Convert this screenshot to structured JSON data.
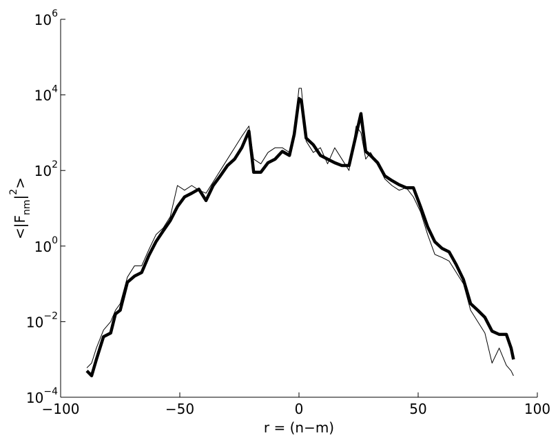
{
  "chart_data": {
    "type": "line",
    "xlabel": "r = (n−m)",
    "ylabel_parts": [
      "<|F",
      "nm",
      "|",
      "2",
      ">"
    ],
    "x": [
      -89,
      -87,
      -85,
      -82,
      -79,
      -77,
      -75,
      -72,
      -69,
      -66,
      -63,
      -60,
      -57,
      -54,
      -51,
      -48,
      -45,
      -42,
      -39,
      -36,
      -33,
      -30,
      -27,
      -24,
      -21,
      -19,
      -16,
      -13,
      -10,
      -7,
      -4,
      -2,
      0,
      1,
      3,
      6,
      9,
      12,
      15,
      18,
      21,
      24,
      26,
      28,
      30,
      33,
      36,
      39,
      42,
      45,
      48,
      51,
      54,
      57,
      60,
      63,
      66,
      69,
      72,
      75,
      78,
      81,
      84,
      87,
      89,
      90
    ],
    "series": [
      {
        "color": "#000000",
        "width": 1,
        "values": [
          0.0006,
          0.0008,
          0.002,
          0.006,
          0.01,
          0.02,
          0.03,
          0.15,
          0.3,
          0.3,
          0.8,
          2,
          3,
          6,
          40,
          30,
          40,
          30,
          25,
          50,
          100,
          200,
          400,
          800,
          1500,
          200,
          150,
          300,
          400,
          400,
          300,
          1000,
          15000,
          15000,
          600,
          300,
          400,
          150,
          400,
          200,
          100,
          1500,
          1000,
          200,
          300,
          150,
          60,
          40,
          30,
          35,
          20,
          8,
          2,
          0.6,
          0.5,
          0.4,
          0.2,
          0.1,
          0.02,
          0.01,
          0.005,
          0.0008,
          0.002,
          0.0007,
          0.0005,
          0.00037
        ]
      },
      {
        "color": "#000000",
        "width": 4.5,
        "values": [
          0.0005,
          0.00037,
          0.001,
          0.004,
          0.005,
          0.016,
          0.02,
          0.11,
          0.16,
          0.2,
          0.56,
          1.3,
          2.5,
          4.7,
          11,
          20,
          25,
          32,
          16,
          40,
          72,
          135,
          200,
          400,
          1100,
          90,
          90,
          160,
          200,
          320,
          250,
          900,
          8000,
          7200,
          720,
          480,
          250,
          200,
          160,
          135,
          135,
          900,
          3200,
          320,
          250,
          160,
          72,
          54,
          42,
          35,
          35,
          11,
          3.2,
          1.3,
          0.87,
          0.7,
          0.32,
          0.13,
          0.03,
          0.02,
          0.013,
          0.0056,
          0.0046,
          0.0046,
          0.002,
          0.001
        ]
      }
    ],
    "xlim": [
      -100,
      100
    ],
    "xticks": [
      {
        "value": -100,
        "label": "−100"
      },
      {
        "value": -50,
        "label": "−50"
      },
      0,
      50,
      100
    ],
    "ylim": [
      0.0001,
      1000000
    ],
    "yscale": "log",
    "yticks": [
      {
        "value": 0.0001,
        "label": "10",
        "exponent": "−4"
      },
      {
        "value": 0.01,
        "label": "10",
        "exponent": "−2"
      },
      {
        "value": 1,
        "label": "10",
        "exponent": "0"
      },
      {
        "value": 100,
        "label": "10",
        "exponent": "2"
      },
      {
        "value": 10000,
        "label": "10",
        "exponent": "4"
      },
      {
        "value": 1000000,
        "label": "10",
        "exponent": "6"
      }
    ]
  }
}
